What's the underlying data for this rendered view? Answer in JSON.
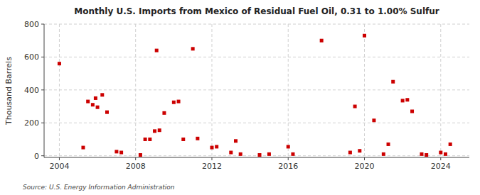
{
  "chart_data": {
    "type": "scatter",
    "title": "Monthly U.S. Imports from Mexico of Residual Fuel Oil, 0.31 to 1.00% Sulfur",
    "y_label": "Thousand Barrels",
    "annotations": [
      "Source: U.S. Energy Information Administration"
    ],
    "color": "#cc0000",
    "marker": "square",
    "grid": true,
    "xlim": [
      2003.2,
      2025.5
    ],
    "ylim": [
      -10,
      800
    ],
    "yticks": [
      0,
      200,
      400,
      600,
      800
    ],
    "xticks": [
      2004,
      2008,
      2012,
      2016,
      2020,
      2024
    ],
    "x": [
      2004.0,
      2005.25,
      2005.5,
      2005.75,
      2005.9,
      2006.0,
      2006.25,
      2006.5,
      2007.0,
      2007.25,
      2008.25,
      2008.5,
      2008.75,
      2009.0,
      2009.1,
      2009.25,
      2009.5,
      2010.0,
      2010.25,
      2010.5,
      2011.0,
      2011.25,
      2012.0,
      2012.25,
      2013.0,
      2013.25,
      2013.5,
      2014.5,
      2015.0,
      2016.0,
      2016.25,
      2017.75,
      2019.25,
      2019.5,
      2019.75,
      2020.0,
      2020.5,
      2021.0,
      2021.25,
      2021.5,
      2022.0,
      2022.25,
      2022.5,
      2023.0,
      2023.25,
      2024.0,
      2024.25,
      2024.5
    ],
    "values": [
      560,
      50,
      330,
      310,
      350,
      295,
      370,
      265,
      25,
      20,
      5,
      100,
      100,
      150,
      640,
      155,
      260,
      325,
      330,
      100,
      650,
      105,
      50,
      55,
      20,
      90,
      10,
      5,
      10,
      55,
      10,
      700,
      20,
      300,
      30,
      730,
      215,
      10,
      70,
      450,
      335,
      340,
      270,
      10,
      5,
      20,
      10,
      70
    ]
  }
}
